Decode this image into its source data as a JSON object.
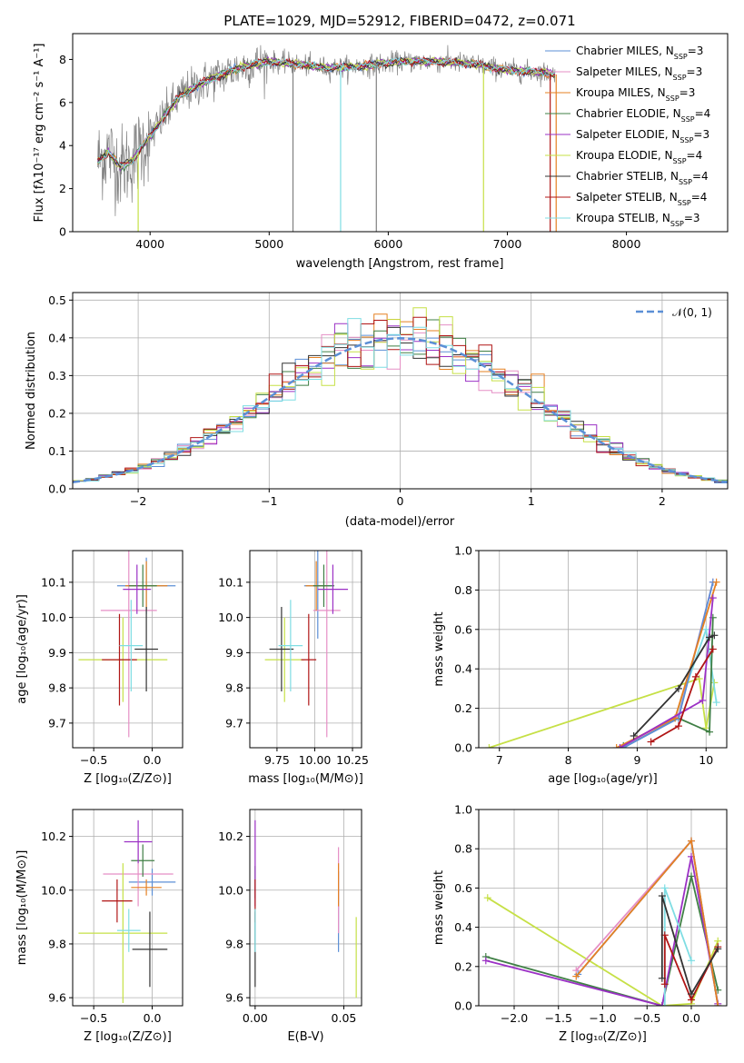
{
  "colors": {
    "chabrier_miles": "#5b8fd6",
    "salpeter_miles": "#e58fc5",
    "kroupa_miles": "#e58022",
    "chabrier_elodie": "#3f7f45",
    "salpeter_elodie": "#9b30c5",
    "kroupa_elodie": "#c6e046",
    "chabrier_stelib": "#333333",
    "salpeter_stelib": "#b01515",
    "kroupa_stelib": "#7fdde3",
    "data": "#808080",
    "gaussian": "#5b8fd6",
    "grid": "#b0b0b0"
  },
  "chart_data": [
    {
      "id": "spectrum",
      "type": "line",
      "title": "PLATE=1029, MJD=52912, FIBERID=0472, z=0.071",
      "xlabel": "wavelength [Angstrom, rest frame]",
      "ylabel": "Flux [fλ10⁻¹⁷ erg cm⁻² s⁻¹ A⁻¹]",
      "xlim": [
        3350,
        8850
      ],
      "ylim": [
        0,
        9.2
      ],
      "xticks": [
        "4000",
        "5000",
        "6000",
        "7000",
        "8000"
      ],
      "yticks": [
        "0",
        "2",
        "4",
        "6",
        "8"
      ],
      "grid": false,
      "legend_position": "top-right",
      "legend": [
        {
          "base": "Chabrier MILES, N",
          "sub": "SSP",
          "tail": "=3",
          "color_key": "chabrier_miles"
        },
        {
          "base": "Salpeter MILES, N",
          "sub": "SSP",
          "tail": "=3",
          "color_key": "salpeter_miles"
        },
        {
          "base": "Kroupa MILES, N",
          "sub": "SSP",
          "tail": "=3",
          "color_key": "kroupa_miles"
        },
        {
          "base": "Chabrier ELODIE, N",
          "sub": "SSP",
          "tail": "=4",
          "color_key": "chabrier_elodie"
        },
        {
          "base": "Salpeter ELODIE, N",
          "sub": "SSP",
          "tail": "=3",
          "color_key": "salpeter_elodie"
        },
        {
          "base": "Kroupa ELODIE, N",
          "sub": "SSP",
          "tail": "=4",
          "color_key": "kroupa_elodie"
        },
        {
          "base": "Chabrier STELIB, N",
          "sub": "SSP",
          "tail": "=4",
          "color_key": "chabrier_stelib"
        },
        {
          "base": "Salpeter STELIB, N",
          "sub": "SSP",
          "tail": "=4",
          "color_key": "salpeter_stelib"
        },
        {
          "base": "Kroupa STELIB, N",
          "sub": "SSP",
          "tail": "=3",
          "color_key": "kroupa_stelib"
        }
      ],
      "continuum": {
        "wavelength": [
          3560,
          3650,
          3750,
          3850,
          3950,
          4050,
          4150,
          4250,
          4400,
          4600,
          4800,
          5000,
          5200,
          5500,
          5800,
          6100,
          6400,
          6700,
          7000,
          7300,
          7400
        ],
        "flux": [
          3.3,
          3.7,
          3.0,
          3.3,
          4.1,
          4.8,
          5.6,
          6.3,
          6.8,
          7.3,
          7.7,
          7.9,
          7.8,
          7.6,
          7.7,
          7.9,
          7.9,
          7.8,
          7.5,
          7.4,
          7.3
        ]
      },
      "dropouts": [
        {
          "wavelength": 3900,
          "color_key": "kroupa_elodie"
        },
        {
          "wavelength": 5200,
          "color_key": "data"
        },
        {
          "wavelength": 5600,
          "color_key": "kroupa_stelib"
        },
        {
          "wavelength": 5900,
          "color_key": "data"
        },
        {
          "wavelength": 6800,
          "color_key": "kroupa_elodie"
        },
        {
          "wavelength": 7360,
          "color_key": "salpeter_stelib"
        },
        {
          "wavelength": 7410,
          "color_key": "kroupa_miles"
        }
      ]
    },
    {
      "id": "residuals",
      "type": "line",
      "xlabel": "(data-model)/error",
      "ylabel": "Normed distribution",
      "xlim": [
        -2.5,
        2.5
      ],
      "ylim": [
        0,
        0.52
      ],
      "xticks": [
        "−2",
        "−1",
        "0",
        "1",
        "2"
      ],
      "yticks": [
        "0.0",
        "0.1",
        "0.2",
        "0.3",
        "0.4",
        "0.5"
      ],
      "grid": true,
      "legend_position": "top-right",
      "legend": [
        {
          "label": "𝒩(0, 1)",
          "color_key": "gaussian"
        }
      ],
      "histogram": {
        "bin_width": 0.1,
        "range": [
          -2.5,
          2.5
        ]
      }
    },
    {
      "id": "age_vs_z",
      "type": "scatter",
      "xlabel": "Z [log₁₀(Z/Z⊙)]",
      "ylabel": "age  [log₁₀(age/yr)]",
      "xlim": [
        -0.68,
        0.26
      ],
      "ylim": [
        9.63,
        10.19
      ],
      "xticks": [
        {
          "v": -0.5,
          "label": "−0.5"
        },
        {
          "v": 0.0,
          "label": "0.0"
        }
      ],
      "yticks": [
        {
          "v": 9.7,
          "label": "9.7"
        },
        {
          "v": 9.8,
          "label": "9.8"
        },
        {
          "v": 9.9,
          "label": "9.9"
        },
        {
          "v": 10.0,
          "label": "10.0"
        },
        {
          "v": 10.1,
          "label": "10.1"
        }
      ],
      "points": [
        {
          "k": "chabrier_miles",
          "x": -0.05,
          "y": 10.09,
          "ex": 0.25,
          "ey": 0.08
        },
        {
          "k": "salpeter_miles",
          "x": -0.2,
          "y": 10.02,
          "ex": 0.24,
          "ey": 0.36
        },
        {
          "k": "kroupa_miles",
          "x": -0.05,
          "y": 10.09,
          "ex": 0.18,
          "ey": 0.07
        },
        {
          "k": "chabrier_elodie",
          "x": -0.08,
          "y": 10.09,
          "ex": 0.12,
          "ey": 0.06
        },
        {
          "k": "salpeter_elodie",
          "x": -0.13,
          "y": 10.08,
          "ex": 0.12,
          "ey": 0.07
        },
        {
          "k": "kroupa_elodie",
          "x": -0.25,
          "y": 9.88,
          "ex": 0.38,
          "ey": 0.12
        },
        {
          "k": "chabrier_stelib",
          "x": -0.05,
          "y": 9.91,
          "ex": 0.1,
          "ey": 0.12
        },
        {
          "k": "salpeter_stelib",
          "x": -0.28,
          "y": 9.88,
          "ex": 0.15,
          "ey": 0.13
        },
        {
          "k": "kroupa_stelib",
          "x": -0.18,
          "y": 9.92,
          "ex": 0.1,
          "ey": 0.13
        }
      ]
    },
    {
      "id": "age_vs_mass",
      "type": "scatter",
      "xlabel": "mass [log₁₀(M/M⊙)]",
      "ylabel": "",
      "xlim": [
        9.57,
        10.31
      ],
      "ylim": [
        9.63,
        10.19
      ],
      "xticks": [
        {
          "v": 9.75,
          "label": "9.75"
        },
        {
          "v": 10.0,
          "label": "10.00"
        },
        {
          "v": 10.25,
          "label": "10.25"
        }
      ],
      "yticks": [
        {
          "v": 9.7,
          "label": "9.7"
        },
        {
          "v": 9.8,
          "label": "9.8"
        },
        {
          "v": 9.9,
          "label": "9.9"
        },
        {
          "v": 10.0,
          "label": "10.0"
        },
        {
          "v": 10.1,
          "label": "10.1"
        }
      ],
      "points": [
        {
          "k": "chabrier_miles",
          "x": 10.02,
          "y": 10.09,
          "ex": 0.09,
          "ey": 0.15
        },
        {
          "k": "salpeter_miles",
          "x": 10.08,
          "y": 10.02,
          "ex": 0.09,
          "ey": 0.36
        },
        {
          "k": "kroupa_miles",
          "x": 10.01,
          "y": 10.09,
          "ex": 0.07,
          "ey": 0.07
        },
        {
          "k": "chabrier_elodie",
          "x": 10.06,
          "y": 10.09,
          "ex": 0.07,
          "ey": 0.06
        },
        {
          "k": "salpeter_elodie",
          "x": 10.12,
          "y": 10.08,
          "ex": 0.1,
          "ey": 0.07
        },
        {
          "k": "kroupa_elodie",
          "x": 9.8,
          "y": 9.88,
          "ex": 0.13,
          "ey": 0.12
        },
        {
          "k": "chabrier_stelib",
          "x": 9.78,
          "y": 9.91,
          "ex": 0.08,
          "ey": 0.12
        },
        {
          "k": "salpeter_stelib",
          "x": 9.96,
          "y": 9.88,
          "ex": 0.05,
          "ey": 0.13
        },
        {
          "k": "kroupa_stelib",
          "x": 9.84,
          "y": 9.92,
          "ex": 0.08,
          "ey": 0.13
        }
      ]
    },
    {
      "id": "mass_vs_z",
      "type": "scatter",
      "xlabel": "Z [log₁₀(Z/Z⊙)]",
      "ylabel": "mass [log₁₀(M/M⊙)]",
      "xlim": [
        -0.68,
        0.26
      ],
      "ylim": [
        9.57,
        10.3
      ],
      "xticks": [
        {
          "v": -0.5,
          "label": "−0.5"
        },
        {
          "v": 0.0,
          "label": "0.0"
        }
      ],
      "yticks": [
        {
          "v": 9.6,
          "label": "9.6"
        },
        {
          "v": 9.8,
          "label": "9.8"
        },
        {
          "v": 10.0,
          "label": "10.0"
        },
        {
          "v": 10.2,
          "label": "10.2"
        }
      ],
      "points": [
        {
          "k": "chabrier_miles",
          "x": 0.0,
          "y": 10.03,
          "ex": 0.2,
          "ey": 0.05
        },
        {
          "k": "salpeter_miles",
          "x": -0.12,
          "y": 10.06,
          "ex": 0.3,
          "ey": 0.12
        },
        {
          "k": "kroupa_miles",
          "x": -0.05,
          "y": 10.01,
          "ex": 0.13,
          "ey": 0.03
        },
        {
          "k": "chabrier_elodie",
          "x": -0.08,
          "y": 10.11,
          "ex": 0.1,
          "ey": 0.06
        },
        {
          "k": "salpeter_elodie",
          "x": -0.12,
          "y": 10.18,
          "ex": 0.12,
          "ey": 0.08
        },
        {
          "k": "kroupa_elodie",
          "x": -0.25,
          "y": 9.84,
          "ex": 0.38,
          "ey": 0.26
        },
        {
          "k": "chabrier_stelib",
          "x": -0.02,
          "y": 9.78,
          "ex": 0.15,
          "ey": 0.14
        },
        {
          "k": "salpeter_stelib",
          "x": -0.3,
          "y": 9.96,
          "ex": 0.13,
          "ey": 0.08
        },
        {
          "k": "kroupa_stelib",
          "x": -0.2,
          "y": 9.85,
          "ex": 0.1,
          "ey": 0.08
        }
      ]
    },
    {
      "id": "mass_vs_ebv",
      "type": "scatter",
      "xlabel": "E(B-V)",
      "ylabel": "",
      "xlim": [
        -0.003,
        0.06
      ],
      "ylim": [
        9.57,
        10.3
      ],
      "xticks": [
        {
          "v": 0.0,
          "label": "0.00"
        },
        {
          "v": 0.05,
          "label": "0.05"
        }
      ],
      "yticks": [
        {
          "v": 9.6,
          "label": "9.6"
        },
        {
          "v": 9.8,
          "label": "9.8"
        },
        {
          "v": 10.0,
          "label": "10.0"
        },
        {
          "v": 10.2,
          "label": "10.2"
        }
      ],
      "points": [
        {
          "k": "chabrier_miles",
          "x": 0.047,
          "y": 9.92,
          "ex": 0,
          "ey": 0.15
        },
        {
          "k": "salpeter_miles",
          "x": 0.047,
          "y": 10.0,
          "ex": 0,
          "ey": 0.16
        },
        {
          "k": "kroupa_miles",
          "x": 0.047,
          "y": 10.02,
          "ex": 0,
          "ey": 0.08
        },
        {
          "k": "chabrier_elodie",
          "x": 0.0,
          "y": 10.03,
          "ex": 0,
          "ey": 0.06
        },
        {
          "k": "salpeter_elodie",
          "x": 0.0,
          "y": 10.1,
          "ex": 0,
          "ey": 0.16
        },
        {
          "k": "kroupa_elodie",
          "x": 0.057,
          "y": 9.75,
          "ex": 0,
          "ey": 0.15
        },
        {
          "k": "chabrier_stelib",
          "x": 0.0,
          "y": 9.78,
          "ex": 0,
          "ey": 0.14
        },
        {
          "k": "salpeter_stelib",
          "x": 0.0,
          "y": 9.96,
          "ex": 0,
          "ey": 0.08
        },
        {
          "k": "kroupa_stelib",
          "x": 0.0,
          "y": 9.85,
          "ex": 0,
          "ey": 0.08
        }
      ]
    },
    {
      "id": "weight_vs_age",
      "type": "line",
      "xlabel": "age  [log₁₀(age/yr)]",
      "ylabel": "mass weight",
      "xlim": [
        6.7,
        10.3
      ],
      "ylim": [
        0,
        1.0
      ],
      "xticks": [
        {
          "v": 7,
          "label": "7"
        },
        {
          "v": 8,
          "label": "8"
        },
        {
          "v": 9,
          "label": "9"
        },
        {
          "v": 10,
          "label": "10"
        }
      ],
      "yticks": [
        {
          "v": 0,
          "label": "0.0"
        },
        {
          "v": 0.2,
          "label": "0.2"
        },
        {
          "v": 0.4,
          "label": "0.4"
        },
        {
          "v": 0.6,
          "label": "0.6"
        },
        {
          "v": 0.8,
          "label": "0.8"
        },
        {
          "v": 1.0,
          "label": "1.0"
        }
      ],
      "series": [
        {
          "k": "kroupa_elodie",
          "x": [
            6.85,
            9.9,
            10.0,
            10.12
          ],
          "y": [
            0.0,
            0.35,
            0.1,
            0.33
          ]
        },
        {
          "k": "kroupa_stelib",
          "x": [
            8.8,
            9.55,
            10.0,
            10.15
          ],
          "y": [
            0.0,
            0.15,
            0.6,
            0.23
          ]
        },
        {
          "k": "chabrier_elodie",
          "x": [
            8.8,
            9.6,
            10.05,
            10.1
          ],
          "y": [
            0.01,
            0.15,
            0.08,
            0.66
          ]
        },
        {
          "k": "salpeter_miles",
          "x": [
            8.75,
            9.6,
            10.1
          ],
          "y": [
            0.0,
            0.16,
            0.84
          ]
        },
        {
          "k": "chabrier_miles",
          "x": [
            8.8,
            9.6,
            10.1
          ],
          "y": [
            0.0,
            0.15,
            0.84
          ]
        },
        {
          "k": "kroupa_miles",
          "x": [
            8.7,
            9.55,
            10.15
          ],
          "y": [
            0.0,
            0.15,
            0.84
          ]
        },
        {
          "k": "salpeter_elodie",
          "x": [
            8.75,
            9.95,
            10.1
          ],
          "y": [
            0.0,
            0.24,
            0.76
          ]
        },
        {
          "k": "salpeter_stelib",
          "x": [
            9.2,
            9.6,
            9.85,
            10.1
          ],
          "y": [
            0.03,
            0.11,
            0.36,
            0.5
          ]
        },
        {
          "k": "chabrier_stelib",
          "x": [
            8.95,
            9.6,
            10.05,
            10.12
          ],
          "y": [
            0.06,
            0.3,
            0.56,
            0.57
          ]
        }
      ]
    },
    {
      "id": "weight_vs_z",
      "type": "line",
      "xlabel": "Z [log₁₀(Z/Z⊙)]",
      "ylabel": "mass weight",
      "xlim": [
        -2.4,
        0.4
      ],
      "ylim": [
        0,
        1.0
      ],
      "xticks": [
        {
          "v": -2.0,
          "label": "−2.0"
        },
        {
          "v": -1.5,
          "label": "−1.5"
        },
        {
          "v": -1.0,
          "label": "−1.0"
        },
        {
          "v": -0.5,
          "label": "−0.5"
        },
        {
          "v": 0.0,
          "label": "0.0"
        }
      ],
      "yticks": [
        {
          "v": 0,
          "label": "0.0"
        },
        {
          "v": 0.2,
          "label": "0.2"
        },
        {
          "v": 0.4,
          "label": "0.4"
        },
        {
          "v": 0.6,
          "label": "0.6"
        },
        {
          "v": 0.8,
          "label": "0.8"
        },
        {
          "v": 1.0,
          "label": "1.0"
        }
      ],
      "series": [
        {
          "k": "kroupa_elodie",
          "x": [
            -2.3,
            -0.33,
            0.0,
            0.3
          ],
          "y": [
            0.55,
            0.0,
            0.01,
            0.33
          ]
        },
        {
          "k": "chabrier_elodie",
          "x": [
            -2.32,
            -0.33,
            0.0,
            0.3
          ],
          "y": [
            0.25,
            0.0,
            0.66,
            0.08
          ]
        },
        {
          "k": "salpeter_elodie",
          "x": [
            -2.32,
            -0.33,
            0.0,
            0.3
          ],
          "y": [
            0.23,
            0.0,
            0.76,
            0.01
          ]
        },
        {
          "k": "salpeter_miles",
          "x": [
            -1.3,
            0.0,
            0.3
          ],
          "y": [
            0.18,
            0.84,
            0.0
          ]
        },
        {
          "k": "chabrier_miles",
          "x": [
            -1.28,
            0.0,
            0.3
          ],
          "y": [
            0.16,
            0.84,
            0.0
          ]
        },
        {
          "k": "kroupa_miles",
          "x": [
            -1.3,
            0.0,
            0.3
          ],
          "y": [
            0.15,
            0.84,
            0.0
          ]
        },
        {
          "k": "kroupa_stelib",
          "x": [
            -0.3,
            -0.3,
            0.0
          ],
          "y": [
            0.0,
            0.6,
            0.23
          ]
        },
        {
          "k": "salpeter_stelib",
          "x": [
            -0.3,
            -0.3,
            0.0,
            0.3
          ],
          "y": [
            0.11,
            0.36,
            0.03,
            0.3
          ]
        },
        {
          "k": "chabrier_stelib",
          "x": [
            -0.33,
            -0.33,
            0.0,
            0.3
          ],
          "y": [
            0.14,
            0.56,
            0.06,
            0.29
          ]
        }
      ]
    }
  ]
}
